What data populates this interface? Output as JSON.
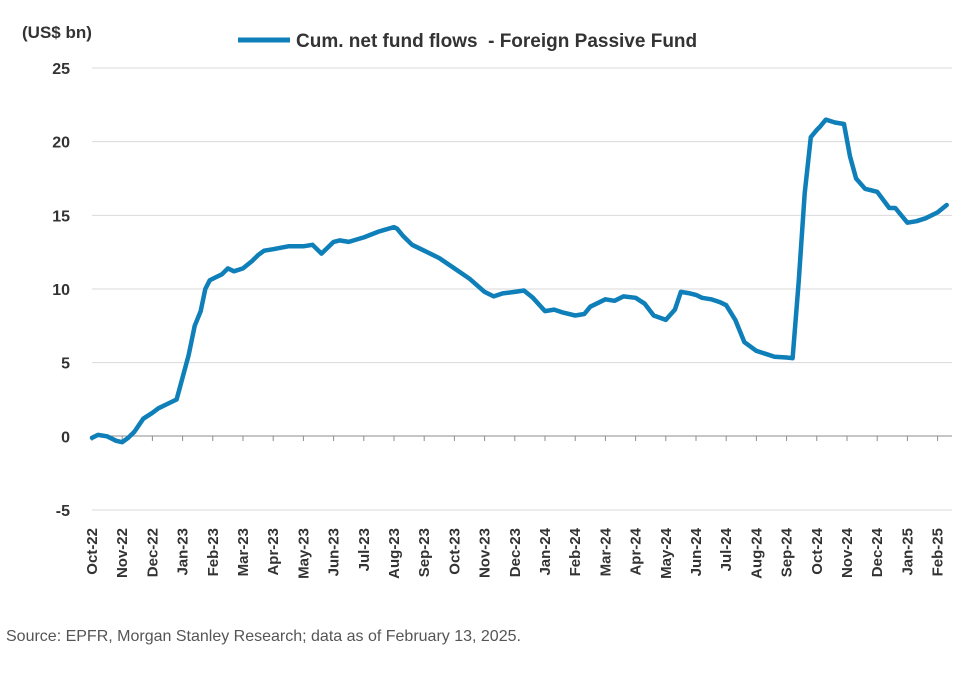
{
  "chart_data": {
    "type": "line",
    "unit_label": "(US$ bn)",
    "ylim": [
      -5,
      25
    ],
    "yticks": [
      -5,
      0,
      5,
      10,
      15,
      20,
      25
    ],
    "grid": "horizontal",
    "legend": "top-center",
    "x_tick_labels": [
      "Oct-22",
      "Nov-22",
      "Dec-22",
      "Jan-23",
      "Feb-23",
      "Mar-23",
      "Apr-23",
      "May-23",
      "Jun-23",
      "Jul-23",
      "Aug-23",
      "Sep-23",
      "Oct-23",
      "Nov-23",
      "Dec-23",
      "Jan-24",
      "Feb-24",
      "Mar-24",
      "Apr-24",
      "May-24",
      "Jun-24",
      "Jul-24",
      "Aug-24",
      "Sep-24",
      "Oct-24",
      "Nov-24",
      "Dec-24",
      "Jan-25",
      "Feb-25"
    ],
    "series": [
      {
        "name": "Cum. net fund flows  - Foreign Passive Fund",
        "color": "#0e7fb8",
        "x": [
          0,
          0.2,
          0.5,
          0.8,
          1.0,
          1.2,
          1.4,
          1.7,
          2.0,
          2.2,
          2.5,
          2.8,
          3.0,
          3.2,
          3.4,
          3.6,
          3.75,
          3.9,
          4.0,
          4.1,
          4.3,
          4.5,
          4.7,
          5.0,
          5.3,
          5.5,
          5.7,
          6.0,
          6.5,
          7.0,
          7.3,
          7.6,
          8.0,
          8.2,
          8.5,
          9.0,
          9.5,
          10.0,
          10.1,
          10.3,
          10.6,
          11.0,
          11.5,
          12.0,
          12.5,
          13.0,
          13.3,
          13.6,
          14.0,
          14.3,
          14.6,
          15.0,
          15.3,
          15.6,
          16.0,
          16.3,
          16.5,
          17.0,
          17.3,
          17.6,
          18.0,
          18.3,
          18.6,
          19.0,
          19.3,
          19.5,
          19.8,
          20.0,
          20.2,
          20.5,
          20.8,
          21.0,
          21.3,
          21.6,
          22.0,
          22.3,
          22.6,
          23.0,
          23.2,
          23.4,
          23.6,
          23.8,
          24.0,
          24.1,
          24.3,
          24.6,
          24.9,
          25.1,
          25.3,
          25.6,
          26.0,
          26.4,
          26.6,
          27.0,
          27.3,
          27.6,
          28.0,
          28.3
        ],
        "values": [
          -0.1,
          0.1,
          0.0,
          -0.3,
          -0.4,
          -0.1,
          0.3,
          1.2,
          1.6,
          1.9,
          2.2,
          2.5,
          4.0,
          5.5,
          7.5,
          8.5,
          10.0,
          10.6,
          10.7,
          10.8,
          11.0,
          11.4,
          11.2,
          11.4,
          11.9,
          12.3,
          12.6,
          12.7,
          12.9,
          12.9,
          13.0,
          12.4,
          13.2,
          13.3,
          13.2,
          13.5,
          13.9,
          14.2,
          14.1,
          13.6,
          13.0,
          12.6,
          12.1,
          11.4,
          10.7,
          9.8,
          9.5,
          9.7,
          9.8,
          9.9,
          9.4,
          8.5,
          8.6,
          8.4,
          8.2,
          8.3,
          8.8,
          9.3,
          9.2,
          9.5,
          9.4,
          9.0,
          8.2,
          7.9,
          8.6,
          9.8,
          9.7,
          9.6,
          9.4,
          9.3,
          9.1,
          8.9,
          7.9,
          6.4,
          5.8,
          5.6,
          5.4,
          5.35,
          5.3,
          10.5,
          16.5,
          20.3,
          20.8,
          21.0,
          21.5,
          21.3,
          21.2,
          19.0,
          17.5,
          16.8,
          16.6,
          15.5,
          15.5,
          14.5,
          14.6,
          14.8,
          15.2,
          15.7
        ]
      }
    ]
  },
  "source_note": "Source: EPFR, Morgan Stanley Research; data as of February 13, 2025."
}
